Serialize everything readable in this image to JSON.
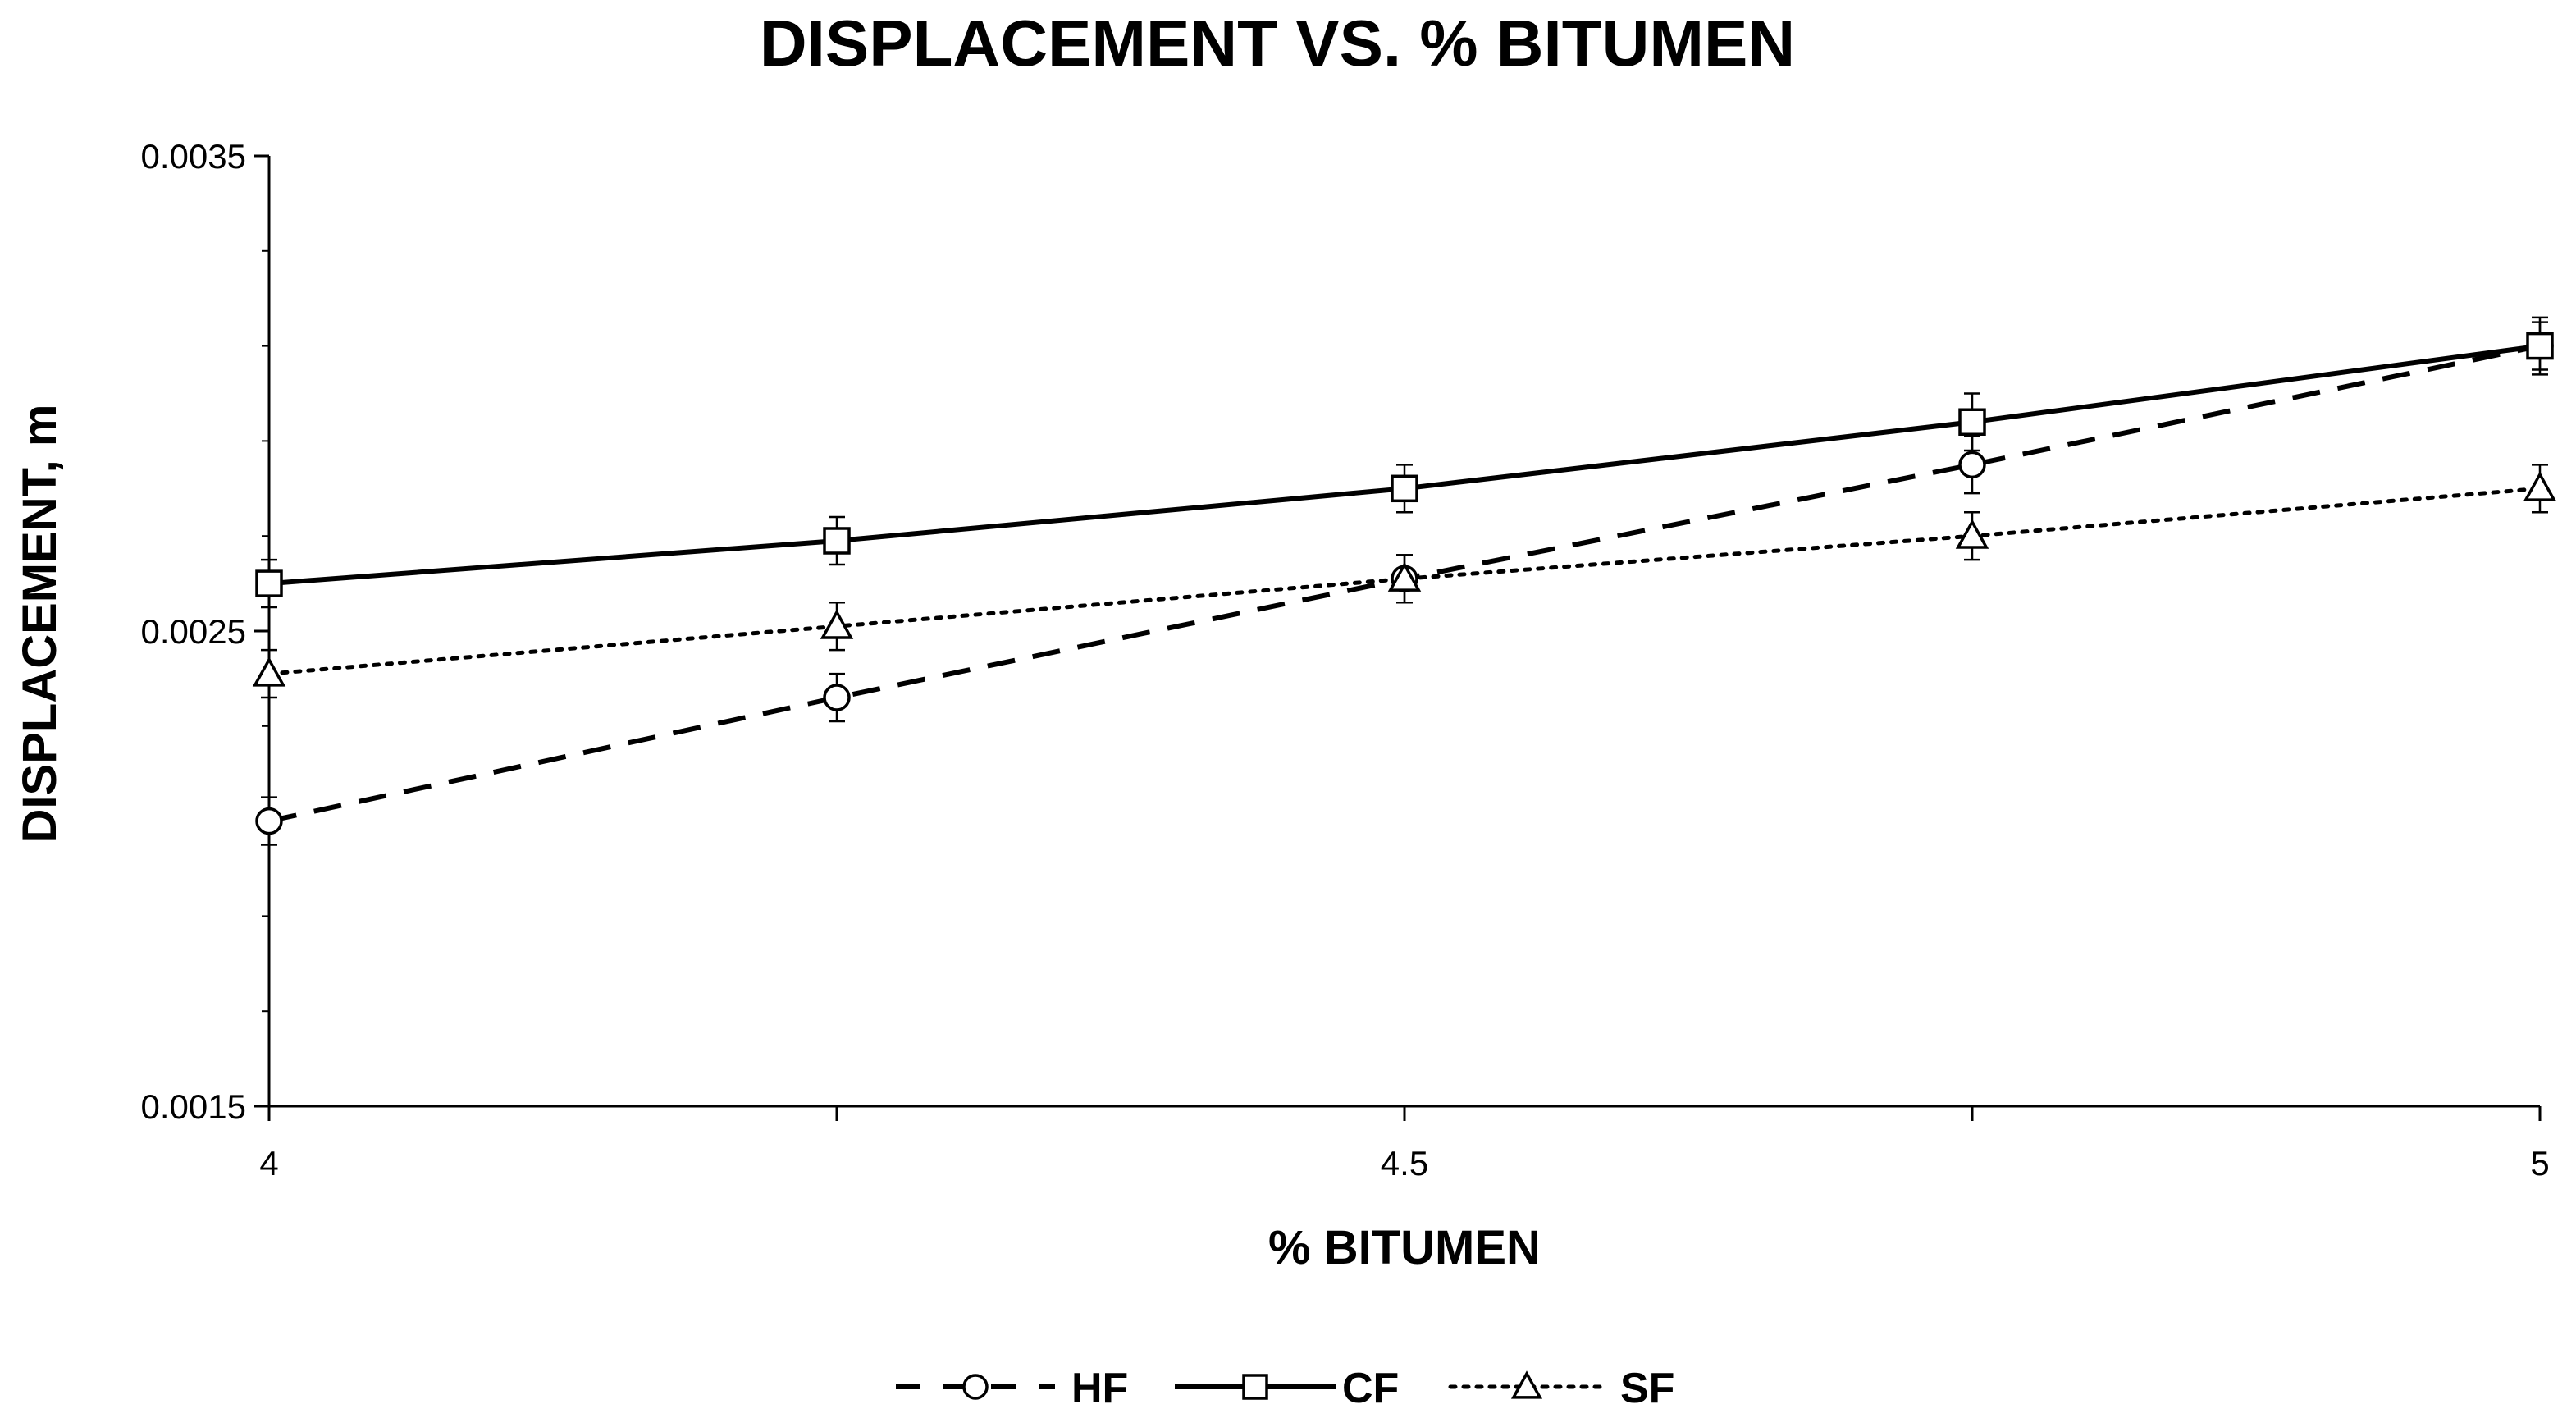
{
  "chart_data": {
    "type": "line",
    "title": "DISPLACEMENT VS. % BITUMEN",
    "xlabel": "% BITUMEN",
    "ylabel": "DISPLACEMENT, m",
    "x": [
      4,
      4.25,
      4.5,
      4.75,
      5
    ],
    "xlim": [
      4,
      5
    ],
    "ylim": [
      0.0015,
      0.0035
    ],
    "x_ticks": [
      4,
      4.5,
      5
    ],
    "x_tick_labels": [
      "4",
      "4.5",
      "5"
    ],
    "y_ticks": [
      0.0015,
      0.0025,
      0.0035
    ],
    "y_tick_labels": [
      "0.0015",
      "0.0025",
      "0.0035"
    ],
    "grid": false,
    "legend_position": "bottom",
    "series": [
      {
        "name": "HF",
        "marker": "circle",
        "line_style": "dashed",
        "values": [
          0.0021,
          0.00236,
          0.00261,
          0.00285,
          0.0031
        ],
        "error": [
          5e-05,
          5e-05,
          5e-05,
          6e-05,
          5e-05
        ]
      },
      {
        "name": "CF",
        "marker": "square",
        "line_style": "solid",
        "values": [
          0.0026,
          0.00269,
          0.0028,
          0.00294,
          0.0031
        ],
        "error": [
          5e-05,
          5e-05,
          5e-05,
          6e-05,
          6e-05
        ]
      },
      {
        "name": "SF",
        "marker": "triangle",
        "line_style": "dotted",
        "values": [
          0.00241,
          0.00251,
          0.00261,
          0.0027,
          0.0028
        ],
        "error": [
          5e-05,
          5e-05,
          5e-05,
          5e-05,
          5e-05
        ]
      }
    ]
  },
  "colors": {
    "ink": "#000000",
    "background": "#ffffff"
  }
}
